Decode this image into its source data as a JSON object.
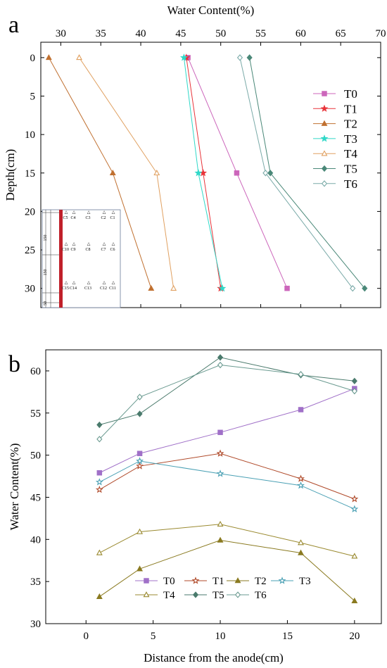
{
  "chart_data": [
    {
      "panel": "a",
      "type": "line",
      "xlabel": "Water Content(%)",
      "ylabel": "Depth(cm)",
      "x_axis_position": "top",
      "y_axis_inverted": true,
      "xlim": [
        27.5,
        70
      ],
      "ylim": [
        -2,
        32.5
      ],
      "xticks": [
        30,
        35,
        40,
        45,
        50,
        55,
        60,
        65,
        70
      ],
      "yticks": [
        0,
        5,
        10,
        15,
        20,
        25,
        30
      ],
      "legend_position": "right",
      "series": [
        {
          "name": "T0",
          "color": "#cc66bb",
          "marker": "square-filled",
          "points": [
            [
              45.9,
              0
            ],
            [
              52.0,
              15
            ],
            [
              58.3,
              30
            ]
          ]
        },
        {
          "name": "T1",
          "color": "#e8343a",
          "marker": "star-filled",
          "points": [
            [
              45.7,
              0
            ],
            [
              47.8,
              15
            ],
            [
              50.0,
              30
            ]
          ]
        },
        {
          "name": "T2",
          "color": "#c07030",
          "marker": "triangle-filled",
          "points": [
            [
              28.5,
              0
            ],
            [
              36.5,
              15
            ],
            [
              41.3,
              30
            ]
          ]
        },
        {
          "name": "T3",
          "color": "#30d8c8",
          "marker": "star-filled",
          "points": [
            [
              45.4,
              0
            ],
            [
              47.2,
              15
            ],
            [
              50.2,
              30
            ]
          ]
        },
        {
          "name": "T4",
          "color": "#e0a060",
          "marker": "triangle-open",
          "points": [
            [
              32.3,
              0
            ],
            [
              42.0,
              15
            ],
            [
              44.1,
              30
            ]
          ]
        },
        {
          "name": "T5",
          "color": "#4a8878",
          "marker": "diamond-filled",
          "points": [
            [
              53.6,
              0
            ],
            [
              56.2,
              15
            ],
            [
              68.0,
              30
            ]
          ]
        },
        {
          "name": "T6",
          "color": "#7aaaa8",
          "marker": "diamond-open",
          "points": [
            [
              52.4,
              0
            ],
            [
              55.6,
              15
            ],
            [
              66.5,
              30
            ]
          ]
        }
      ],
      "inset": {
        "labels": [
          "C5",
          "C4",
          "C3",
          "C2",
          "C1",
          "C10",
          "C9",
          "C8",
          "C7",
          "C6",
          "C15",
          "C14",
          "C13",
          "C12",
          "C11"
        ],
        "dimension_labels": [
          "150",
          "150",
          "50"
        ]
      }
    },
    {
      "panel": "b",
      "type": "line",
      "xlabel": "Distance from the anode(cm)",
      "ylabel": "Water Content(%)",
      "xlim": [
        -3,
        22
      ],
      "ylim": [
        30,
        62.5
      ],
      "xticks": [
        0,
        5,
        10,
        15,
        20
      ],
      "yticks": [
        30,
        35,
        40,
        45,
        50,
        55,
        60
      ],
      "x": [
        1,
        4,
        10,
        16,
        20
      ],
      "legend_position": "bottom-center",
      "series": [
        {
          "name": "T0",
          "color": "#a070c8",
          "marker": "square-filled",
          "values": [
            47.9,
            50.2,
            52.7,
            55.4,
            57.9
          ]
        },
        {
          "name": "T1",
          "color": "#b04a2a",
          "marker": "star-open",
          "values": [
            45.9,
            48.7,
            50.2,
            47.2,
            44.8
          ]
        },
        {
          "name": "T2",
          "color": "#8a7a20",
          "marker": "triangle-filled",
          "values": [
            33.2,
            36.5,
            39.9,
            38.4,
            32.7
          ]
        },
        {
          "name": "T3",
          "color": "#4aa0b4",
          "marker": "star-open",
          "values": [
            46.8,
            49.3,
            47.8,
            46.4,
            43.6
          ]
        },
        {
          "name": "T4",
          "color": "#9a8a30",
          "marker": "triangle-open",
          "values": [
            38.4,
            40.9,
            41.8,
            39.6,
            38.0
          ]
        },
        {
          "name": "T5",
          "color": "#4a7a6c",
          "marker": "diamond-filled",
          "values": [
            53.6,
            54.9,
            61.6,
            59.5,
            58.8
          ]
        },
        {
          "name": "T6",
          "color": "#6a9a90",
          "marker": "diamond-open",
          "values": [
            51.9,
            56.9,
            60.7,
            59.6,
            57.6
          ]
        }
      ]
    }
  ]
}
